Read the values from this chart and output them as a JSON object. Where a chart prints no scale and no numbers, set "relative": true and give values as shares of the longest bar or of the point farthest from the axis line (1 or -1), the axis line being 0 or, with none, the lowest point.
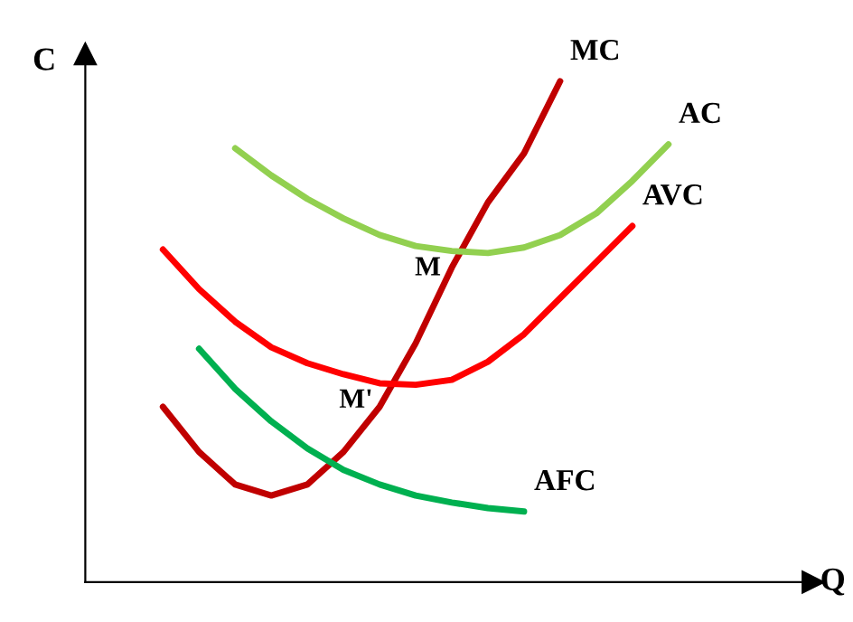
{
  "chart_data": {
    "type": "line",
    "relative": true,
    "ylabel": "C",
    "xlabel": "Q",
    "grid": false,
    "legend": false,
    "marker": "none",
    "line_style": "solid",
    "categories": [
      null,
      null,
      null,
      null,
      null,
      null,
      null,
      null,
      null,
      null,
      null,
      null,
      null,
      null,
      null
    ],
    "series": [
      {
        "name": "MC",
        "color": "#c00000",
        "values": [
          0.35,
          0.26,
          0.195,
          0.173,
          0.195,
          0.26,
          0.35,
          0.477,
          0.628,
          0.758,
          0.856,
          1.0,
          null,
          null,
          null
        ]
      },
      {
        "name": "AC",
        "color": "#92d050",
        "values": [
          null,
          null,
          0.866,
          0.812,
          0.765,
          0.726,
          0.693,
          0.671,
          0.661,
          0.657,
          0.668,
          0.693,
          0.736,
          0.801,
          0.874
        ]
      },
      {
        "name": "AVC",
        "color": "#ff0000",
        "values": [
          0.664,
          0.585,
          0.52,
          0.469,
          0.437,
          0.415,
          0.397,
          0.394,
          0.404,
          0.44,
          0.495,
          0.567,
          0.639,
          0.711,
          null
        ]
      },
      {
        "name": "AFC",
        "color": "#00b050",
        "values": [
          null,
          0.466,
          0.386,
          0.321,
          0.267,
          0.224,
          0.195,
          0.173,
          0.159,
          0.148,
          0.141,
          null,
          null,
          null,
          null
        ]
      }
    ],
    "annotations": [
      {
        "text": "M",
        "y": 0.661
      },
      {
        "text": "M'",
        "y": 0.397
      }
    ]
  }
}
